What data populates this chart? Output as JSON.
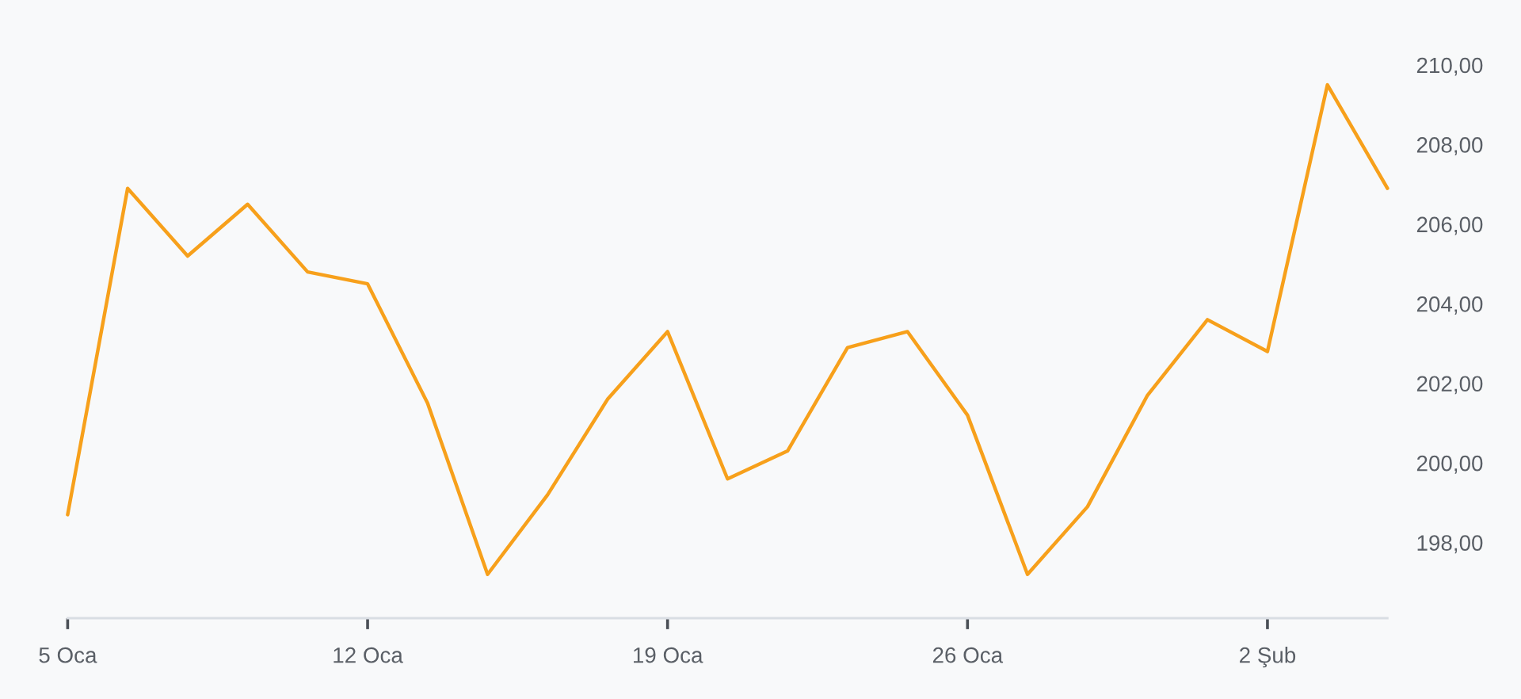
{
  "chart_data": {
    "type": "line",
    "categories": [
      "5 Oca",
      null,
      null,
      null,
      null,
      "12 Oca",
      null,
      null,
      null,
      null,
      "19 Oca",
      null,
      null,
      null,
      null,
      "26 Oca",
      null,
      null,
      null,
      null,
      "2 Şub",
      null,
      null
    ],
    "series": [
      {
        "color": "#f7a01b",
        "values": [
          198.7,
          206.9,
          205.2,
          206.5,
          204.8,
          204.5,
          201.5,
          197.2,
          199.2,
          201.6,
          203.3,
          199.6,
          200.3,
          202.9,
          203.3,
          201.2,
          197.2,
          198.9,
          201.7,
          203.6,
          202.8,
          209.5,
          206.9
        ]
      }
    ],
    "ylim": [
      196.1,
      210
    ],
    "yticks": [
      {
        "value": 198,
        "label": "198,00"
      },
      {
        "value": 200,
        "label": "200,00"
      },
      {
        "value": 202,
        "label": "202,00"
      },
      {
        "value": 204,
        "label": "204,00"
      },
      {
        "value": 206,
        "label": "206,00"
      },
      {
        "value": 208,
        "label": "208,00"
      },
      {
        "value": 210,
        "label": "210,00"
      }
    ],
    "grid": false
  }
}
